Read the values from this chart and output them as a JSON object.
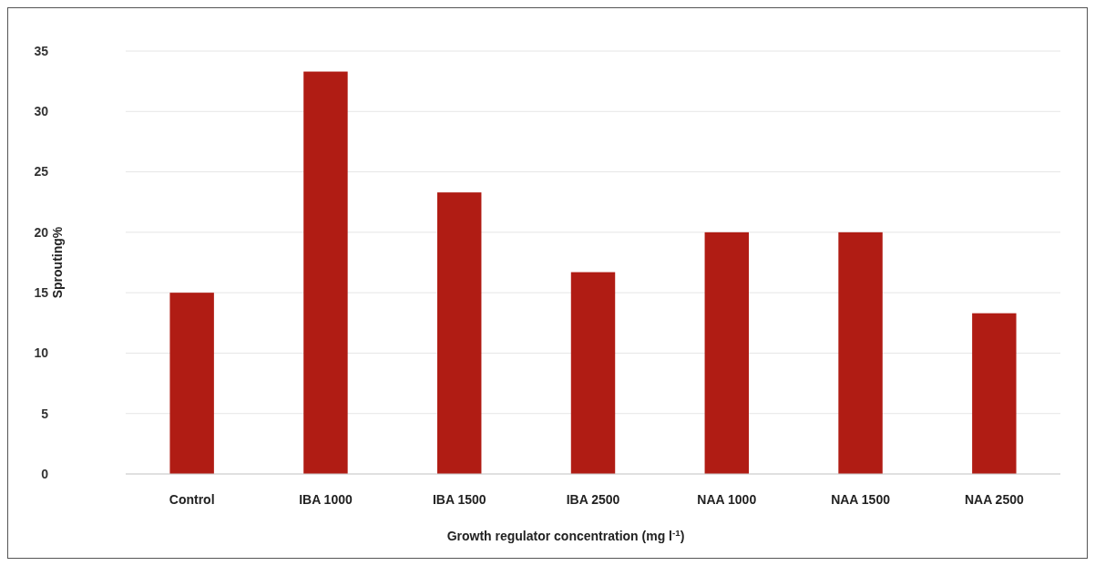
{
  "chart_data": {
    "type": "bar",
    "xlabel": "Growth regulator concentration (mg l$^{-1}$)",
    "ylabel": "Sprouting%",
    "categories": [
      "Control",
      "IBA 1000",
      "IBA 1500",
      "IBA 2500",
      "NAA 1000",
      "NAA 1500",
      "NAA 2500"
    ],
    "values": [
      15,
      33.3,
      23.3,
      16.7,
      20,
      20,
      13.3
    ],
    "color": "#b01c14",
    "ylim": [
      0,
      35
    ],
    "yticks": [
      0,
      5,
      10,
      15,
      20,
      25,
      30,
      35
    ],
    "grid": "y"
  }
}
